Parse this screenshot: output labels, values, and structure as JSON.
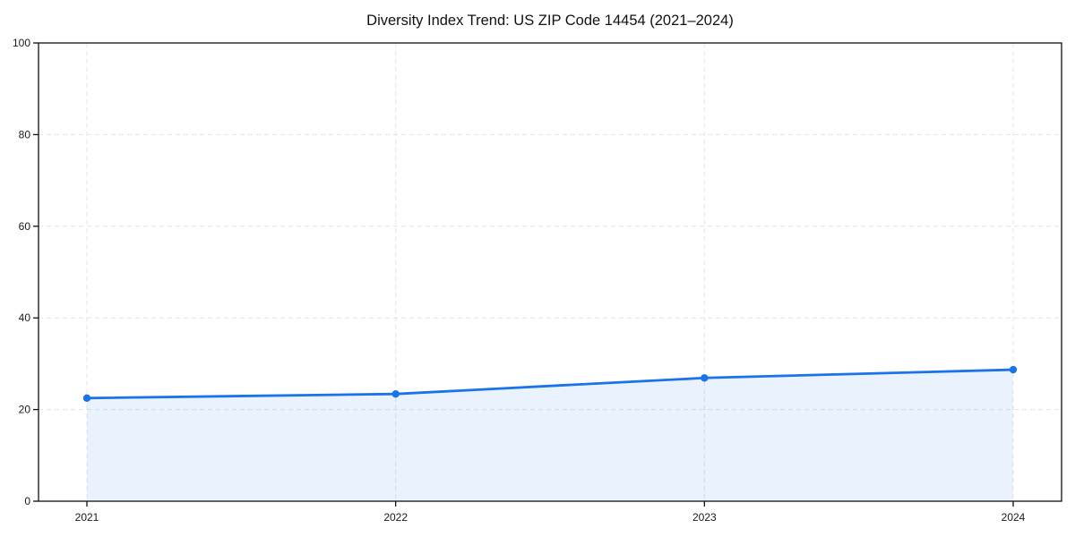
{
  "chart_data": {
    "type": "area",
    "title": "Diversity Index Trend: US ZIP Code 14454 (2021–2024)",
    "categories": [
      "2021",
      "2022",
      "2023",
      "2024"
    ],
    "values": [
      22.5,
      23.4,
      26.9,
      28.7
    ],
    "xlabel": "",
    "ylabel": "",
    "ylim": [
      0,
      100
    ],
    "yticks": [
      0,
      20,
      40,
      60,
      80,
      100
    ],
    "grid": true,
    "grid_style": "dashed",
    "legend": "none",
    "colors": {
      "line": "#1A73E8",
      "marker": "#1A73E8",
      "fill": "rgba(26,115,232,0.09)",
      "grid": "#E4E4E4",
      "axis": "#111111",
      "text": "#1a1a1a",
      "background": "#FFFFFF"
    }
  }
}
